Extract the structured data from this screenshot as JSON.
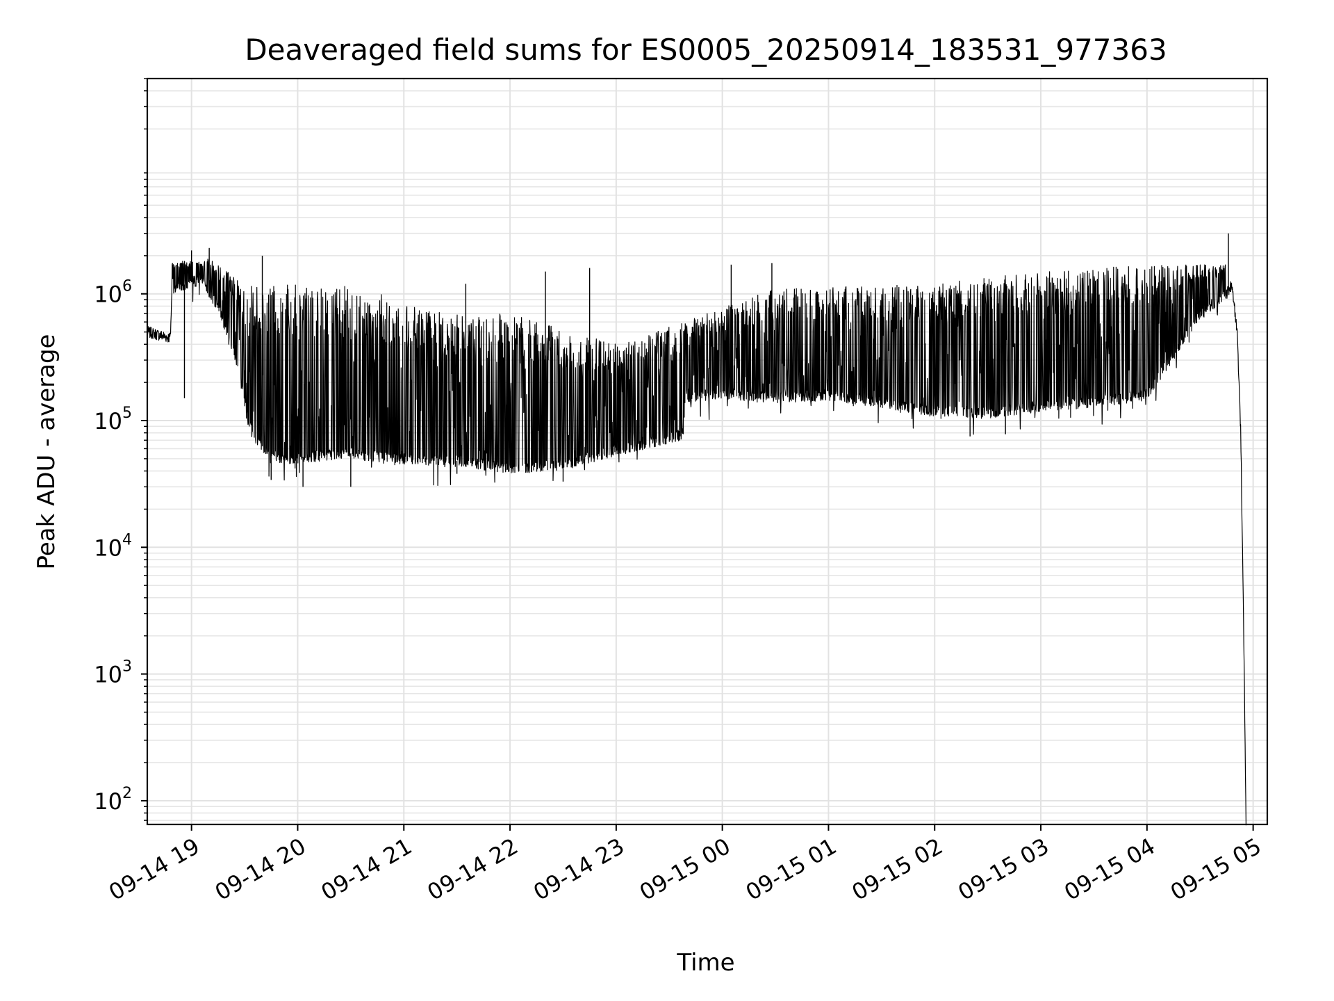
{
  "chart_data": {
    "type": "line",
    "title": "Deaveraged field sums for ES0005_20250914_183531_977363",
    "xlabel": "Time",
    "ylabel": "Peak ADU - average",
    "yscale": "log",
    "ylim": [
      65,
      50000000
    ],
    "xlim": [
      "2025-09-14 18:35",
      "2025-09-15 05:08"
    ],
    "grid": "both",
    "line_color": "#000000",
    "x_ticks": [
      {
        "value": "2025-09-14 19:00",
        "label": "09-14 19"
      },
      {
        "value": "2025-09-14 20:00",
        "label": "09-14 20"
      },
      {
        "value": "2025-09-14 21:00",
        "label": "09-14 21"
      },
      {
        "value": "2025-09-14 22:00",
        "label": "09-14 22"
      },
      {
        "value": "2025-09-14 23:00",
        "label": "09-14 23"
      },
      {
        "value": "2025-09-15 00:00",
        "label": "09-15 00"
      },
      {
        "value": "2025-09-15 01:00",
        "label": "09-15 01"
      },
      {
        "value": "2025-09-15 02:00",
        "label": "09-15 02"
      },
      {
        "value": "2025-09-15 03:00",
        "label": "09-15 03"
      },
      {
        "value": "2025-09-15 04:00",
        "label": "09-15 04"
      },
      {
        "value": "2025-09-15 05:00",
        "label": "09-15 05"
      }
    ],
    "y_ticks": [
      {
        "value": 100,
        "base": "10",
        "exp": "2"
      },
      {
        "value": 1000,
        "base": "10",
        "exp": "3"
      },
      {
        "value": 10000,
        "base": "10",
        "exp": "4"
      },
      {
        "value": 100000,
        "base": "10",
        "exp": "5"
      },
      {
        "value": 1000000,
        "base": "10",
        "exp": "6"
      }
    ],
    "series": [
      {
        "baseline": [
          [
            "2025-09-14 18:35",
            500000
          ],
          [
            "2025-09-14 18:48",
            450000
          ],
          [
            "2025-09-14 18:49",
            1100000
          ],
          [
            "2025-09-14 19:05",
            1300000
          ],
          [
            "2025-09-14 19:15",
            800000
          ],
          [
            "2025-09-14 19:25",
            300000
          ],
          [
            "2025-09-14 19:35",
            70000
          ],
          [
            "2025-09-14 19:50",
            50000
          ],
          [
            "2025-09-14 20:30",
            55000
          ],
          [
            "2025-09-14 21:00",
            50000
          ],
          [
            "2025-09-14 21:30",
            48000
          ],
          [
            "2025-09-14 22:00",
            42000
          ],
          [
            "2025-09-14 22:30",
            45000
          ],
          [
            "2025-09-14 23:00",
            58000
          ],
          [
            "2025-09-14 23:38",
            78000
          ],
          [
            "2025-09-14 23:39",
            150000
          ],
          [
            "2025-09-15 00:00",
            165000
          ],
          [
            "2025-09-15 00:30",
            150000
          ],
          [
            "2025-09-15 01:00",
            160000
          ],
          [
            "2025-09-15 01:30",
            140000
          ],
          [
            "2025-09-15 02:00",
            118000
          ],
          [
            "2025-09-15 02:30",
            115000
          ],
          [
            "2025-09-15 03:00",
            130000
          ],
          [
            "2025-09-15 03:30",
            140000
          ],
          [
            "2025-09-15 04:00",
            160000
          ],
          [
            "2025-09-15 04:30",
            700000
          ],
          [
            "2025-09-15 04:45",
            1000000
          ],
          [
            "2025-09-15 04:48",
            1200000
          ],
          [
            "2025-09-15 04:51",
            500000
          ],
          [
            "2025-09-15 04:53",
            80000
          ],
          [
            "2025-09-15 04:55",
            1000
          ],
          [
            "2025-09-15 04:56",
            65
          ]
        ],
        "upper_envelope": [
          [
            "2025-09-14 18:49",
            1800000
          ],
          [
            "2025-09-14 19:10",
            1900000
          ],
          [
            "2025-09-14 19:30",
            1200000
          ],
          [
            "2025-09-14 20:30",
            1150000
          ],
          [
            "2025-09-14 21:00",
            900000
          ],
          [
            "2025-09-14 21:30",
            700000
          ],
          [
            "2025-09-14 22:00",
            700000
          ],
          [
            "2025-09-14 23:00",
            400000
          ],
          [
            "2025-09-15 00:30",
            1100000
          ],
          [
            "2025-09-15 02:00",
            1200000
          ],
          [
            "2025-09-15 03:00",
            1500000
          ],
          [
            "2025-09-15 04:00",
            1700000
          ],
          [
            "2025-09-15 04:45",
            1700000
          ]
        ],
        "notable_peaks": [
          [
            "2025-09-14 19:00",
            2200000
          ],
          [
            "2025-09-14 19:10",
            2300000
          ],
          [
            "2025-09-14 19:40",
            2000000
          ],
          [
            "2025-09-14 21:35",
            1200000
          ],
          [
            "2025-09-14 22:20",
            1500000
          ],
          [
            "2025-09-14 22:45",
            1600000
          ],
          [
            "2025-09-15 00:05",
            1700000
          ],
          [
            "2025-09-15 00:28",
            1750000
          ],
          [
            "2025-09-15 04:46",
            3000000
          ]
        ],
        "notable_dips": [
          [
            "2025-09-14 18:56",
            150000
          ],
          [
            "2025-09-14 19:45",
            34000
          ],
          [
            "2025-09-14 20:03",
            30000
          ],
          [
            "2025-09-14 20:30",
            30000
          ],
          [
            "2025-09-14 21:30",
            38000
          ],
          [
            "2025-09-14 22:30",
            33000
          ],
          [
            "2025-09-15 02:20",
            75000
          ],
          [
            "2025-09-15 02:40",
            78000
          ]
        ]
      }
    ]
  }
}
